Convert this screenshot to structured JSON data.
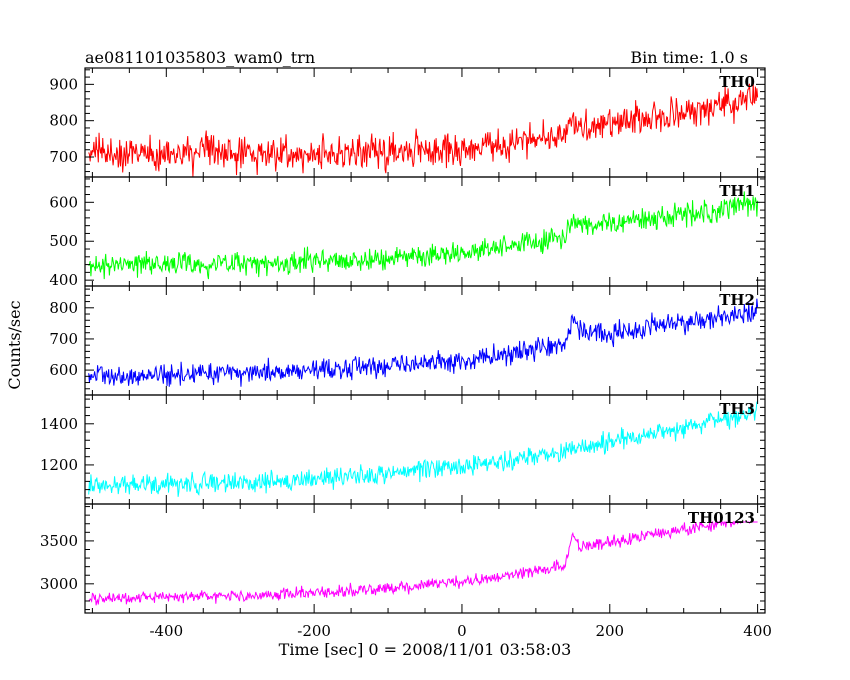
{
  "header": {
    "title": "ae081101035803_wam0_trn",
    "bin_time": "Bin time: 1.0 s"
  },
  "chart_data": {
    "type": "line",
    "title": "ae081101035803_wam0_trn",
    "xlabel": "Time [sec] 0 = 2008/11/01 03:58:03",
    "ylabel": "Counts/sec",
    "xlim": [
      -510,
      410
    ],
    "x_ticks": [
      -400,
      -200,
      0,
      200,
      400
    ],
    "grid": false,
    "bin_seconds": 1.0,
    "series": [
      {
        "name": "TH0",
        "color": "#ff0000",
        "ylim": [
          645,
          945
        ],
        "y_ticks": [
          700,
          800,
          900
        ],
        "points": [
          [
            -505,
            710
          ],
          [
            -450,
            712
          ],
          [
            -400,
            708
          ],
          [
            -300,
            712
          ],
          [
            -200,
            708
          ],
          [
            -100,
            715
          ],
          [
            0,
            720
          ],
          [
            50,
            735
          ],
          [
            100,
            750
          ],
          [
            140,
            768
          ],
          [
            150,
            800
          ],
          [
            160,
            778
          ],
          [
            200,
            790
          ],
          [
            250,
            805
          ],
          [
            300,
            820
          ],
          [
            350,
            840
          ],
          [
            400,
            865
          ]
        ],
        "noise": 38,
        "spike_max": 930
      },
      {
        "name": "TH1",
        "color": "#00ff00",
        "ylim": [
          385,
          665
        ],
        "y_ticks": [
          400,
          500,
          600
        ],
        "points": [
          [
            -505,
            440
          ],
          [
            -400,
            440
          ],
          [
            -300,
            443
          ],
          [
            -200,
            448
          ],
          [
            -100,
            458
          ],
          [
            0,
            472
          ],
          [
            50,
            485
          ],
          [
            100,
            498
          ],
          [
            140,
            510
          ],
          [
            150,
            560
          ],
          [
            165,
            540
          ],
          [
            200,
            545
          ],
          [
            250,
            555
          ],
          [
            300,
            568
          ],
          [
            350,
            582
          ],
          [
            400,
            600
          ]
        ],
        "noise": 24,
        "spike_max": 665
      },
      {
        "name": "TH2",
        "color": "#0000ff",
        "ylim": [
          520,
          870
        ],
        "y_ticks": [
          600,
          700,
          800
        ],
        "points": [
          [
            -505,
            580
          ],
          [
            -400,
            582
          ],
          [
            -300,
            588
          ],
          [
            -200,
            598
          ],
          [
            -100,
            612
          ],
          [
            0,
            630
          ],
          [
            50,
            645
          ],
          [
            100,
            665
          ],
          [
            140,
            690
          ],
          [
            150,
            760
          ],
          [
            165,
            720
          ],
          [
            200,
            718
          ],
          [
            250,
            735
          ],
          [
            300,
            755
          ],
          [
            350,
            772
          ],
          [
            400,
            790
          ]
        ],
        "noise": 28,
        "spike_max": 870
      },
      {
        "name": "TH3",
        "color": "#00ffff",
        "ylim": [
          1010,
          1540
        ],
        "y_ticks": [
          1200,
          1400
        ],
        "points": [
          [
            -505,
            1100
          ],
          [
            -400,
            1105
          ],
          [
            -300,
            1115
          ],
          [
            -200,
            1130
          ],
          [
            -100,
            1160
          ],
          [
            0,
            1195
          ],
          [
            50,
            1215
          ],
          [
            100,
            1240
          ],
          [
            150,
            1275
          ],
          [
            200,
            1310
          ],
          [
            250,
            1345
          ],
          [
            300,
            1385
          ],
          [
            350,
            1420
          ],
          [
            400,
            1460
          ]
        ],
        "noise": 40,
        "spike_max": 1540
      },
      {
        "name": "TH0123",
        "color": "#ff00ff",
        "ylim": [
          2660,
          3930
        ],
        "y_ticks": [
          3000,
          3500
        ],
        "points": [
          [
            -505,
            2830
          ],
          [
            -400,
            2840
          ],
          [
            -300,
            2860
          ],
          [
            -200,
            2895
          ],
          [
            -100,
            2950
          ],
          [
            0,
            3020
          ],
          [
            50,
            3080
          ],
          [
            100,
            3150
          ],
          [
            140,
            3210
          ],
          [
            150,
            3580
          ],
          [
            160,
            3420
          ],
          [
            200,
            3480
          ],
          [
            250,
            3560
          ],
          [
            300,
            3640
          ],
          [
            350,
            3700
          ],
          [
            400,
            3780
          ]
        ],
        "noise": 55,
        "spike_max": 3720
      }
    ]
  }
}
